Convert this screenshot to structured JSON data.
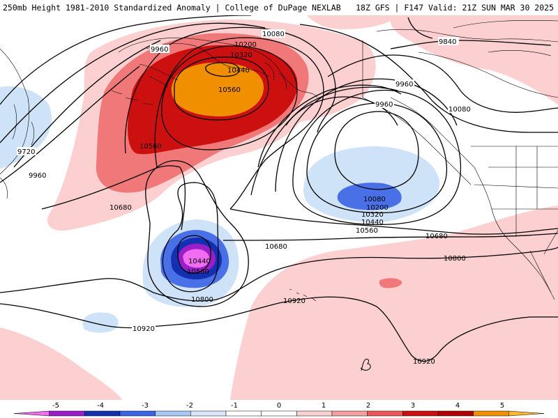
{
  "header": {
    "title_left": "250mb Height 1981-2010 Standardized Anomaly | College of DuPage NEXLAB",
    "title_right": "18Z GFS | F147 Valid: 21Z SUN MAR 30 2025"
  },
  "contour_labels": {
    "c1": "10080",
    "c2": "9960",
    "c3": "10200",
    "c4": "10320",
    "c5": "10440",
    "c6": "10560",
    "c7": "10560",
    "c8": "9840",
    "c9": "9960",
    "c10": "9960",
    "c11": "10080",
    "c12": "9720",
    "c13": "9960",
    "c14": "10680",
    "c15": "10080",
    "c16": "10200",
    "c17": "10320",
    "c18": "10440",
    "c19": "10560",
    "c20": "10680",
    "c21": "10680",
    "c22": "10440",
    "c23": "10560",
    "c24": "10800",
    "c25": "10800",
    "c26": "10920",
    "c27": "10920",
    "c28": "10920"
  },
  "colorbar": {
    "labels": [
      "-5",
      "-4",
      "-3",
      "-2",
      "-1",
      "0",
      "1",
      "2",
      "3",
      "4",
      "5"
    ],
    "colors": [
      "#f06cf0",
      "#9b1fc8",
      "#1230b0",
      "#3a66e6",
      "#a8c8f4",
      "#d8e8fa",
      "#ffffff",
      "#ffffff",
      "#fcd0d0",
      "#f5a0a0",
      "#ea5858",
      "#cc1010",
      "#b00000",
      "#f09000",
      "#ffb830"
    ],
    "anomaly_colors": {
      "neg5": "#f06cf0",
      "neg4": "#9b1fc8",
      "neg3": "#1230b0",
      "neg2": "#4a70e8",
      "neg1": "#cfe3f8",
      "pos1": "#fcd0d0",
      "pos2": "#f07878",
      "pos3": "#cc1010",
      "pos4": "#f09000"
    }
  },
  "icons": {
    "logo": "script-b-logo-icon"
  }
}
